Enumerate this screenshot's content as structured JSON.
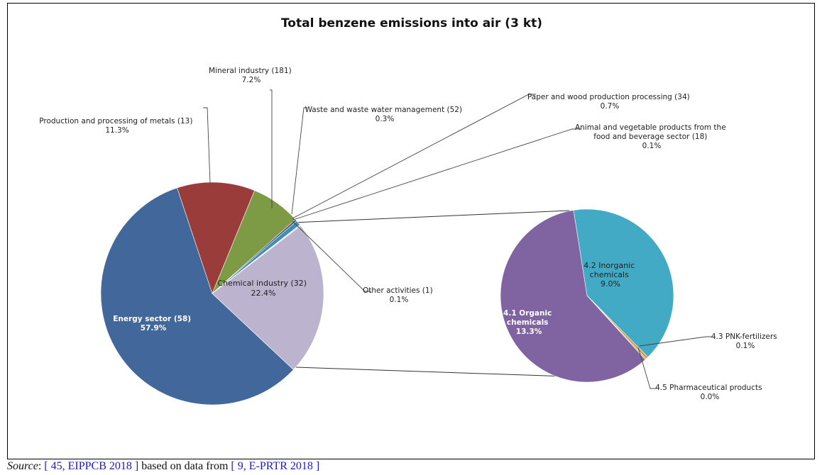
{
  "chart_data": [
    {
      "type": "pie",
      "title": "Total benzene emissions into air (3 kt)",
      "slices": [
        {
          "name": "Energy sector (58)",
          "pct_label": "57.9%",
          "value": 57.9,
          "color": "#41679b"
        },
        {
          "name": "Production and processing of metals (13)",
          "pct_label": "11.3%",
          "value": 11.3,
          "color": "#9a3c3a"
        },
        {
          "name": "Mineral industry (181)",
          "pct_label": "7.2%",
          "value": 7.2,
          "color": "#7d9a45"
        },
        {
          "name": "Waste and waste water management (52)",
          "pct_label": "0.3%",
          "value": 0.3,
          "color": "#5e4a7e"
        },
        {
          "name": "Paper and wood production processing (34)",
          "pct_label": "0.7%",
          "value": 0.7,
          "color": "#3b8fb0"
        },
        {
          "name": "Animal and vegetable products from the food and beverage sector (18)",
          "pct_label": "0.1%",
          "value": 0.1,
          "color": "#d88a3a"
        },
        {
          "name": "Other activities (1)",
          "pct_label": "0.1%",
          "value": 0.1,
          "color": "#8aa8d0"
        },
        {
          "name": "Chemical industry (32)",
          "pct_label": "22.4%",
          "value": 22.4,
          "color": "#bcb3cf"
        }
      ]
    },
    {
      "type": "pie",
      "title": "",
      "slices": [
        {
          "name": "4.2 Inorganic chemicals",
          "pct_label": "9.0%",
          "value": 9.0,
          "color": "#43aac6"
        },
        {
          "name": "4.3 PNK-fertilizers",
          "pct_label": "0.1%",
          "value": 0.1,
          "color": "#e08a34"
        },
        {
          "name": "4.5 Pharmaceutical products",
          "pct_label": "0.0%",
          "value": 0.05,
          "color": "#9bbb59"
        },
        {
          "name": "4.1  Organic chemicals",
          "pct_label": "13.3%",
          "value": 13.3,
          "color": "#8064a2"
        }
      ]
    }
  ],
  "labels": {
    "main": [
      {
        "l1": "Energy sector (58)",
        "l2": "57.9%"
      },
      {
        "l1": "Production and processing of metals (13)",
        "l2": "11.3%"
      },
      {
        "l1": "Mineral industry (181)",
        "l2": "7.2%"
      },
      {
        "l1": "Waste and waste water management  (52)",
        "l2": "0.3%"
      },
      {
        "l1": "Paper and wood production processing (34)",
        "l2": "0.7%"
      },
      {
        "l1": "Animal and vegetable products from the",
        "l1b": "food and beverage sector (18)",
        "l2": "0.1%"
      },
      {
        "l1": "Other activities (1)",
        "l2": "0.1%"
      },
      {
        "l1": "Chemical industry (32)",
        "l2": "22.4%"
      }
    ],
    "sub": [
      {
        "l1": "4.2 Inorganic",
        "l1b": "chemicals",
        "l2": "9.0%"
      },
      {
        "l1": "4.3 PNK-fertilizers",
        "l2": "0.1%"
      },
      {
        "l1": "4.5 Pharmaceutical products",
        "l2": "0.0%"
      },
      {
        "l1": "4.1  Organic",
        "l1b": "chemicals",
        "l2": "13.3%"
      }
    ]
  },
  "caption": {
    "source_word": "Source",
    "colon": ": ",
    "ref1": "[ 45, EIPPCB 2018 ]",
    "mid": " based on data from ",
    "ref2": "[ 9, E-PRTR 2018 ]"
  }
}
